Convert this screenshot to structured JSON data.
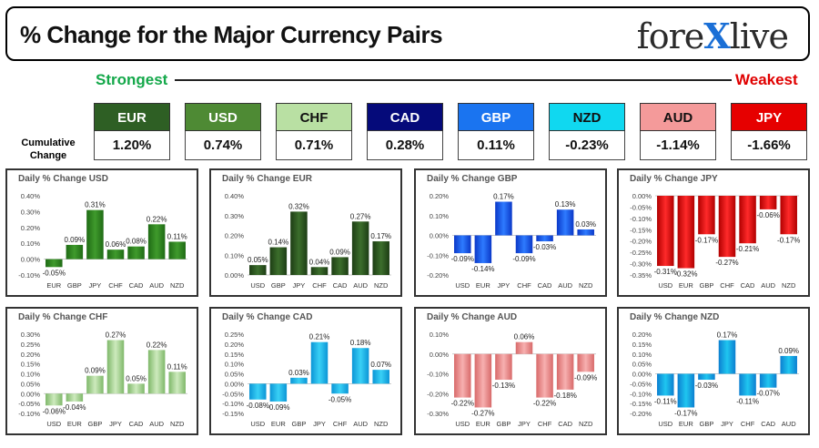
{
  "header": {
    "title": "% Change for the Major Currency Pairs",
    "logo_left": "fore",
    "logo_x": "X",
    "logo_right": "live"
  },
  "legend": {
    "strongest": "Strongest",
    "weakest": "Weakest",
    "cumulative_label": "Cumulative Change"
  },
  "currencies": [
    {
      "code": "EUR",
      "value": "1.20%",
      "color": "#2e5f24"
    },
    {
      "code": "USD",
      "value": "0.74%",
      "color": "#4e8a34"
    },
    {
      "code": "CHF",
      "value": "0.71%",
      "color": "#b9e0a3"
    },
    {
      "code": "CAD",
      "value": "0.28%",
      "color": "#050a7a"
    },
    {
      "code": "GBP",
      "value": "0.11%",
      "color": "#1a74f0"
    },
    {
      "code": "NZD",
      "value": "-0.23%",
      "color": "#10d8f0"
    },
    {
      "code": "AUD",
      "value": "-1.14%",
      "color": "#f49a9a"
    },
    {
      "code": "JPY",
      "value": "-1.66%",
      "color": "#e60000"
    }
  ],
  "chart_data": [
    {
      "type": "bar",
      "title": "Daily % Change USD",
      "color": "green",
      "categories": [
        "EUR",
        "GBP",
        "JPY",
        "CHF",
        "CAD",
        "AUD",
        "NZD"
      ],
      "values": [
        -0.05,
        0.09,
        0.31,
        0.06,
        0.08,
        0.22,
        0.11
      ],
      "labels": [
        "-0.05%",
        "0.09%",
        "0.31%",
        "0.06%",
        "0.08%",
        "0.22%",
        "0.11%"
      ],
      "yticks": [
        "0.40%",
        "0.30%",
        "0.20%",
        "0.10%",
        "0.00%",
        "-0.10%"
      ],
      "ylim": [
        -0.1,
        0.4
      ]
    },
    {
      "type": "bar",
      "title": "Daily % Change EUR",
      "color": "darkgreen",
      "categories": [
        "USD",
        "GBP",
        "JPY",
        "CHF",
        "CAD",
        "AUD",
        "NZD"
      ],
      "values": [
        0.05,
        0.14,
        0.32,
        0.04,
        0.09,
        0.27,
        0.17
      ],
      "labels": [
        "0.05%",
        "0.14%",
        "0.32%",
        "0.04%",
        "0.09%",
        "0.27%",
        "0.17%"
      ],
      "yticks": [
        "0.40%",
        "0.30%",
        "0.20%",
        "0.10%",
        "0.00%"
      ],
      "ylim": [
        0,
        0.4
      ]
    },
    {
      "type": "bar",
      "title": "Daily % Change GBP",
      "color": "blue",
      "categories": [
        "USD",
        "EUR",
        "JPY",
        "CHF",
        "CAD",
        "AUD",
        "NZD"
      ],
      "values": [
        -0.09,
        -0.14,
        0.17,
        -0.09,
        -0.03,
        0.13,
        0.03
      ],
      "labels": [
        "-0.09%",
        "-0.14%",
        "0.17%",
        "-0.09%",
        "-0.03%",
        "0.13%",
        "0.03%"
      ],
      "yticks": [
        "0.20%",
        "0.10%",
        "0.00%",
        "-0.10%",
        "-0.20%"
      ],
      "ylim": [
        -0.2,
        0.2
      ]
    },
    {
      "type": "bar",
      "title": "Daily % Change JPY",
      "color": "red",
      "categories": [
        "USD",
        "EUR",
        "GBP",
        "CHF",
        "CAD",
        "AUD",
        "NZD"
      ],
      "values": [
        -0.31,
        -0.32,
        -0.17,
        -0.27,
        -0.21,
        -0.06,
        -0.17
      ],
      "labels": [
        "-0.31%",
        "-0.32%",
        "-0.17%",
        "-0.27%",
        "-0.21%",
        "-0.06%",
        "-0.17%"
      ],
      "yticks": [
        "0.00%",
        "-0.05%",
        "-0.10%",
        "-0.15%",
        "-0.20%",
        "-0.25%",
        "-0.30%",
        "-0.35%"
      ],
      "ylim": [
        -0.35,
        0
      ]
    },
    {
      "type": "bar",
      "title": "Daily % Change CHF",
      "color": "lightgreen",
      "categories": [
        "USD",
        "EUR",
        "GBP",
        "JPY",
        "CAD",
        "AUD",
        "NZD"
      ],
      "values": [
        -0.06,
        -0.04,
        0.09,
        0.27,
        0.05,
        0.22,
        0.11
      ],
      "labels": [
        "-0.06%",
        "-0.04%",
        "0.09%",
        "0.27%",
        "0.05%",
        "0.22%",
        "0.11%"
      ],
      "yticks": [
        "0.30%",
        "0.25%",
        "0.20%",
        "0.15%",
        "0.10%",
        "0.05%",
        "0.00%",
        "-0.05%",
        "-0.10%"
      ],
      "ylim": [
        -0.1,
        0.3
      ]
    },
    {
      "type": "bar",
      "title": "Daily % Change CAD",
      "color": "cyan",
      "categories": [
        "USD",
        "EUR",
        "GBP",
        "JPY",
        "CHF",
        "AUD",
        "NZD"
      ],
      "values": [
        -0.08,
        -0.09,
        0.03,
        0.21,
        -0.05,
        0.18,
        0.07
      ],
      "labels": [
        "-0.08%",
        "-0.09%",
        "0.03%",
        "0.21%",
        "-0.05%",
        "0.18%",
        "0.07%"
      ],
      "yticks": [
        "0.25%",
        "0.20%",
        "0.15%",
        "0.10%",
        "0.05%",
        "0.00%",
        "-0.05%",
        "-0.10%",
        "-0.15%"
      ],
      "ylim": [
        -0.15,
        0.25
      ]
    },
    {
      "type": "bar",
      "title": "Daily % Change AUD",
      "color": "pink",
      "categories": [
        "USD",
        "EUR",
        "GBP",
        "JPY",
        "CHF",
        "CAD",
        "NZD"
      ],
      "values": [
        -0.22,
        -0.27,
        -0.13,
        0.06,
        -0.22,
        -0.18,
        -0.09
      ],
      "labels": [
        "-0.22%",
        "-0.27%",
        "-0.13%",
        "0.06%",
        "-0.22%",
        "-0.18%",
        "-0.09%"
      ],
      "yticks": [
        "0.10%",
        "0.00%",
        "-0.10%",
        "-0.20%",
        "-0.30%"
      ],
      "ylim": [
        -0.3,
        0.1
      ]
    },
    {
      "type": "bar",
      "title": "Daily % Change NZD",
      "color": "teal",
      "categories": [
        "USD",
        "EUR",
        "GBP",
        "JPY",
        "CHF",
        "CAD",
        "AUD"
      ],
      "values": [
        -0.11,
        -0.17,
        -0.03,
        0.17,
        -0.11,
        -0.07,
        0.09
      ],
      "labels": [
        "-0.11%",
        "-0.17%",
        "-0.03%",
        "0.17%",
        "-0.11%",
        "-0.07%",
        "0.09%"
      ],
      "yticks": [
        "0.20%",
        "0.15%",
        "0.10%",
        "0.05%",
        "0.00%",
        "-0.05%",
        "-0.10%",
        "-0.15%",
        "-0.20%"
      ],
      "ylim": [
        -0.2,
        0.2
      ]
    }
  ]
}
